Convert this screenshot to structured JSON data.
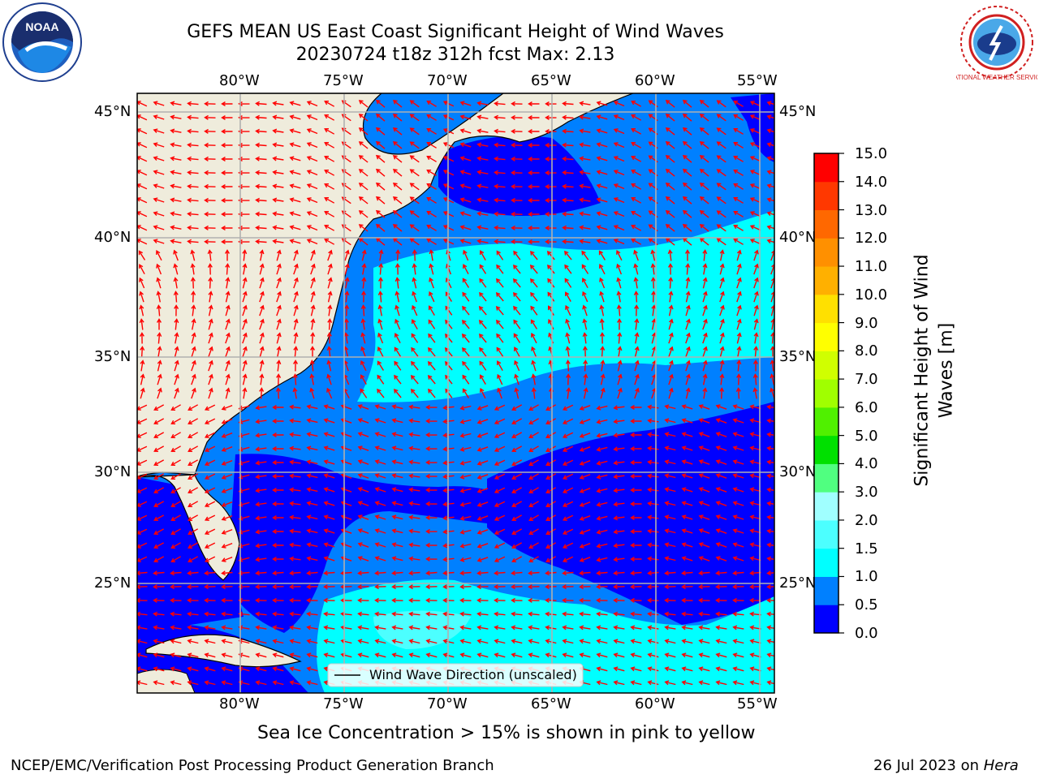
{
  "title": {
    "line1": "GEFS MEAN US East Coast Significant Height of Wind Waves",
    "line2": "20230724 t18z 312h fcst   Max: 2.13"
  },
  "map": {
    "lon_labels": [
      "80°W",
      "75°W",
      "70°W",
      "65°W",
      "60°W",
      "55°W"
    ],
    "lat_labels": [
      "45°N",
      "40°N",
      "35°N",
      "30°N",
      "25°N"
    ],
    "legend_label": "Wind Wave Direction (unscaled)",
    "arrow_color": "#ff0000",
    "land_color": "#efecdc"
  },
  "colorbar": {
    "title_line1": "Significant Height of Wind",
    "title_line2": "Waves [m]",
    "ticks": [
      "0.0",
      "0.5",
      "1.0",
      "1.5",
      "2.0",
      "3.0",
      "4.0",
      "5.0",
      "6.0",
      "7.0",
      "8.0",
      "9.0",
      "10.0",
      "11.0",
      "12.0",
      "13.0",
      "14.0",
      "15.0"
    ],
    "colors": [
      "#0000ff",
      "#0080ff",
      "#00ffff",
      "#4cffff",
      "#a0ffff",
      "#50ff80",
      "#00e000",
      "#50f000",
      "#a0ff00",
      "#d0ff00",
      "#ffff00",
      "#ffe000",
      "#ffb000",
      "#ff9000",
      "#ff6800",
      "#ff3800",
      "#ff0000"
    ]
  },
  "caption": "Sea Ice Concentration > 15% is shown in pink to yellow",
  "footer": {
    "left": "NCEP/EMC/Verification Post Processing Product Generation Branch",
    "right_date": "26 Jul 2023 on ",
    "right_machine": "Hera"
  },
  "logos": {
    "left_text": "NOAA",
    "right_text": "NATIONAL WEATHER SERVICE"
  }
}
